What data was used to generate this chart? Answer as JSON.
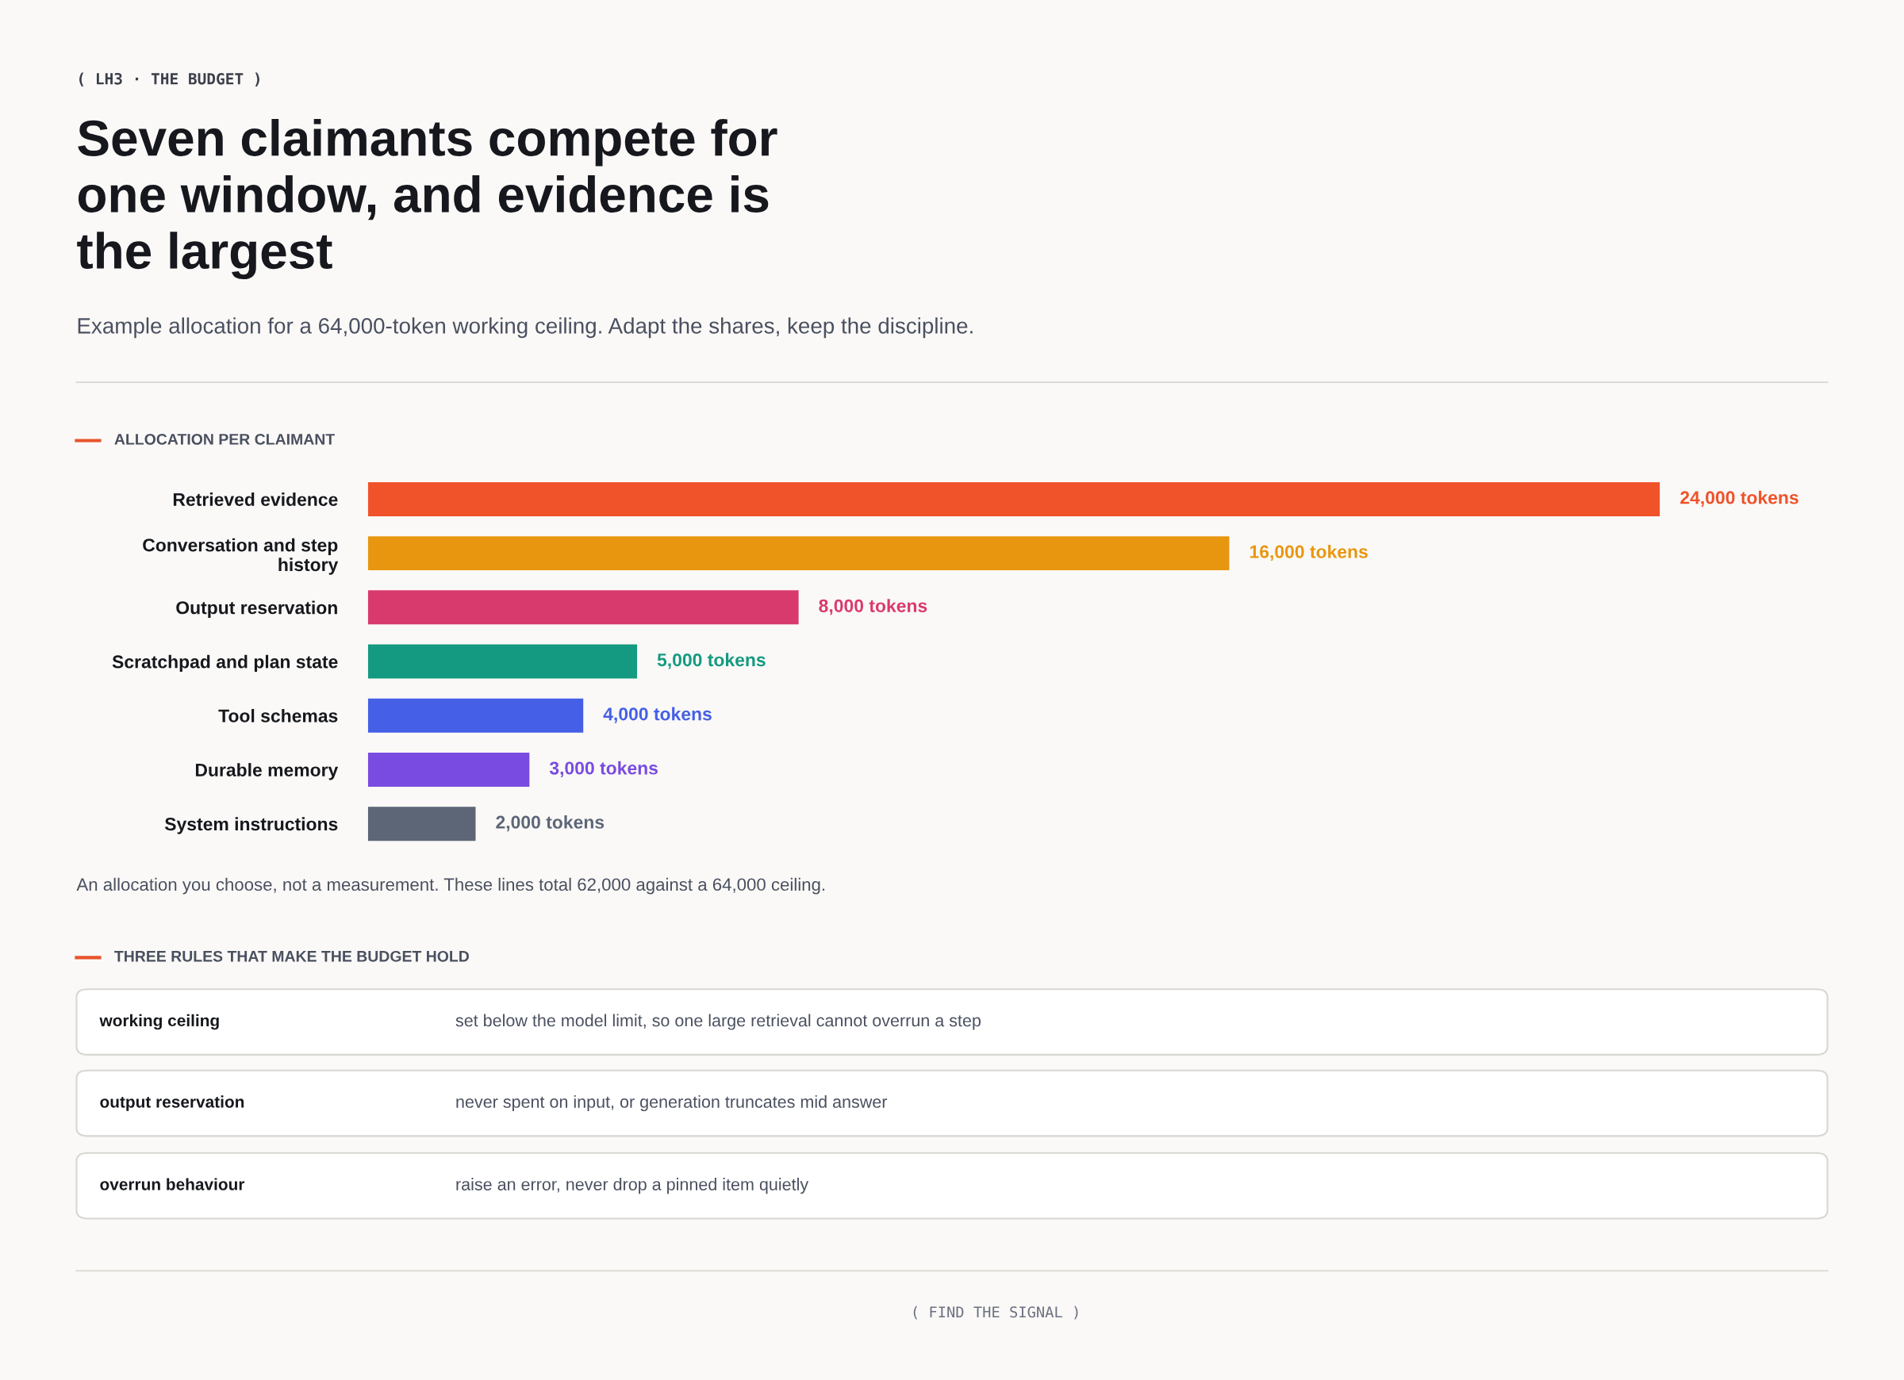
{
  "chart_data": {
    "type": "bar",
    "orientation": "horizontal",
    "title": "Seven claimants compete for\none window, and evidence is\nthe largest",
    "subtitle": "Example allocation for a 64,000-token working ceiling. Adapt the shares, keep the discipline.",
    "categories": [
      "Retrieved evidence",
      "Conversation and step\nhistory",
      "Output reservation",
      "Scratchpad and plan state",
      "Tool schemas",
      "Durable memory",
      "System instructions"
    ],
    "values": [
      24000,
      16000,
      8000,
      5000,
      4000,
      3000,
      2000
    ],
    "colors": [
      "#f0522a",
      "#e8960f",
      "#d93a6e",
      "#149a80",
      "#4560e6",
      "#7a4be0",
      "#5c6677"
    ],
    "value_labels": [
      "24,000 tokens",
      "16,000 tokens",
      "8,000 tokens",
      "5,000 tokens",
      "4,000 tokens",
      "3,000 tokens",
      "2,000 tokens"
    ],
    "grid": false,
    "legend": false,
    "annotations": [
      "( LH3 · THE BUDGET )",
      "ALLOCATION PER CLAIMANT",
      "An allocation you choose, not a measurement. These lines total 62,000 against a 64,000 ceiling.",
      "THREE RULES THAT MAKE THE BUDGET HOLD",
      "working ceiling",
      "set below the model limit, so one large retrieval cannot overrun a step",
      "output reservation",
      "never spent on input, or generation truncates mid answer",
      "overrun behaviour",
      "raise an error, never drop a pinned item quietly",
      "( FIND THE SIGNAL )"
    ]
  }
}
